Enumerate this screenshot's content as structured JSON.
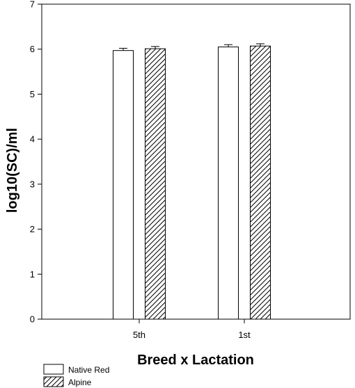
{
  "chart_data": {
    "type": "bar",
    "title": "",
    "xlabel": "Breed x Lactation",
    "ylabel": "log10(SC)/ml",
    "ylim": [
      0,
      7
    ],
    "yticks": [
      "0",
      "1",
      "2",
      "3",
      "4",
      "5",
      "6",
      "7"
    ],
    "categories": [
      "5th",
      "1st"
    ],
    "series": [
      {
        "name": "Native Red",
        "pattern": "solid-white",
        "values": [
          5.97,
          6.05
        ],
        "errors": [
          0.05,
          0.05
        ]
      },
      {
        "name": "Alpine",
        "pattern": "diagonal-hatch",
        "values": [
          6.01,
          6.07
        ],
        "errors": [
          0.05,
          0.05
        ]
      }
    ],
    "grid": false,
    "legend_position": "bottom-left",
    "colors": {
      "bar_fill": "#ffffff",
      "stroke": "#000000",
      "hatch": "#000000"
    }
  }
}
